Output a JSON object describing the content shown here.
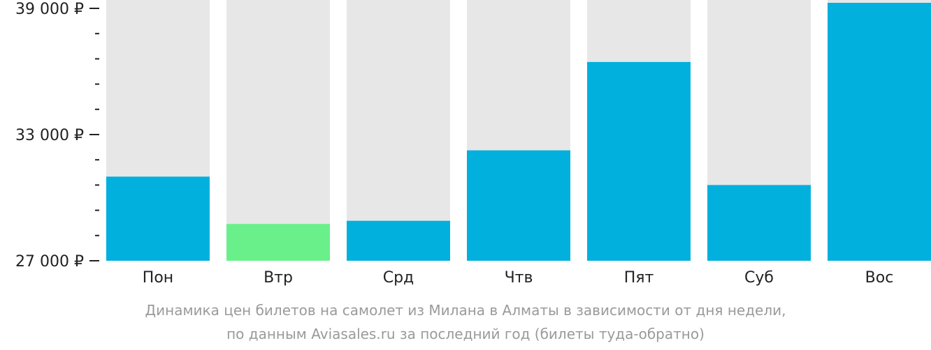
{
  "chart_data": {
    "type": "bar",
    "categories": [
      "Пон",
      "Втр",
      "Срд",
      "Чтв",
      "Пят",
      "Суб",
      "Вос"
    ],
    "values": [
      31000,
      28750,
      28900,
      32250,
      36450,
      30600,
      39300
    ],
    "ylim": [
      27000,
      39000
    ],
    "y_ticks": [
      {
        "value": 39000,
        "label": "39 000 ₽"
      },
      {
        "value": 33000,
        "label": "33 000 ₽"
      },
      {
        "value": 27000,
        "label": "27 000 ₽"
      }
    ],
    "y_minor_step": 1200,
    "highlight_index": 1,
    "grid": false,
    "legend": "none"
  },
  "colors": {
    "bar": "#02b0dd",
    "bar_highlight": "#6af08a",
    "bar_background": "#e7e7e7",
    "axis": "#222222",
    "caption": "#9a9a9a"
  },
  "caption": {
    "line1": "Динамика цен билетов на самолет из Милана в Алматы в зависимости от дня недели,",
    "line2": "по данным Aviasales.ru за последний год (билеты туда-обратно)"
  }
}
